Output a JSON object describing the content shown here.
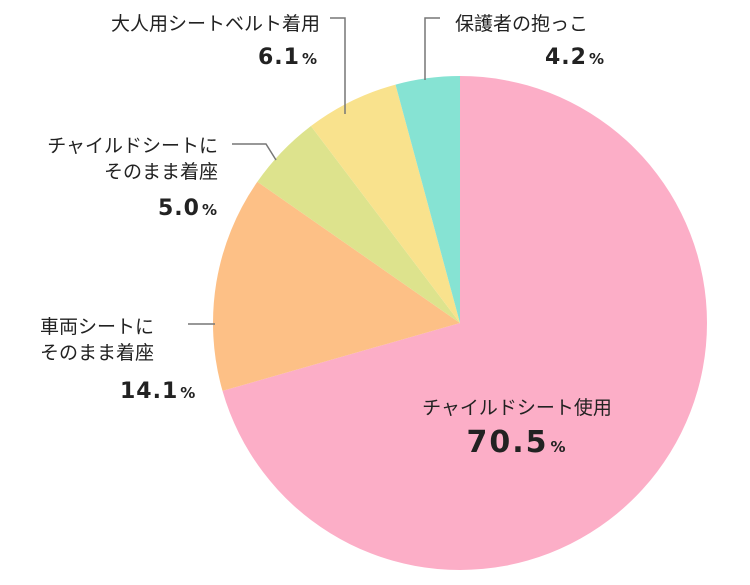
{
  "chart_data": {
    "type": "pie",
    "slices": [
      {
        "label_lines": [
          "チャイルドシート使用"
        ],
        "value": 70.5,
        "value_text": "70.5",
        "unit": "%",
        "color": "#FCAEC7"
      },
      {
        "label_lines": [
          "車両シートに",
          "そのまま着座"
        ],
        "value": 14.1,
        "value_text": "14.1",
        "unit": "%",
        "color": "#FDC086"
      },
      {
        "label_lines": [
          "チャイルドシートに",
          "そのまま着座"
        ],
        "value": 5.0,
        "value_text": "5.0",
        "unit": "%",
        "color": "#DDE38D"
      },
      {
        "label_lines": [
          "大人用シートベルト着用"
        ],
        "value": 6.1,
        "value_text": "6.1",
        "unit": "%",
        "color": "#F9E28D"
      },
      {
        "label_lines": [
          "保護者の抱っこ"
        ],
        "value": 4.2,
        "value_text": "4.2",
        "unit": "%",
        "color": "#86E3D3"
      }
    ]
  }
}
